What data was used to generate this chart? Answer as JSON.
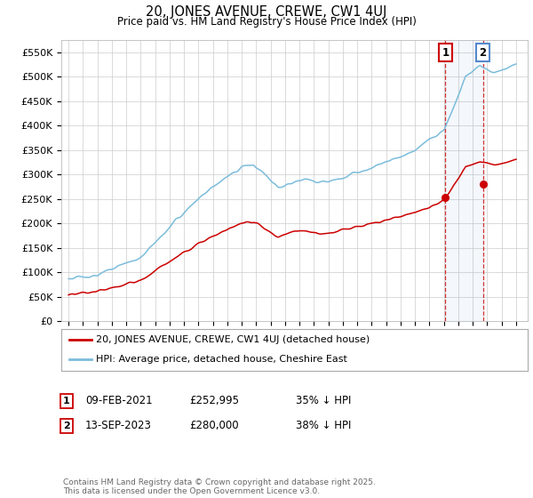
{
  "title": "20, JONES AVENUE, CREWE, CW1 4UJ",
  "subtitle": "Price paid vs. HM Land Registry's House Price Index (HPI)",
  "ylim": [
    0,
    575000
  ],
  "yticks": [
    0,
    50000,
    100000,
    150000,
    200000,
    250000,
    300000,
    350000,
    400000,
    450000,
    500000,
    550000
  ],
  "ytick_labels": [
    "£0",
    "£50K",
    "£100K",
    "£150K",
    "£200K",
    "£250K",
    "£300K",
    "£350K",
    "£400K",
    "£450K",
    "£500K",
    "£550K"
  ],
  "hpi_color": "#7bbcdc",
  "price_color": "#cc0000",
  "marker1_year": 2021.1,
  "marker1_price": 252995,
  "marker1_date": "09-FEB-2021",
  "marker1_pct": "£252,995",
  "marker1_label": "35% ↓ HPI",
  "marker2_year": 2023.7,
  "marker2_price": 280000,
  "marker2_date": "13-SEP-2023",
  "marker2_pct": "£280,000",
  "marker2_label": "38% ↓ HPI",
  "legend_house": "20, JONES AVENUE, CREWE, CW1 4UJ (detached house)",
  "legend_hpi": "HPI: Average price, detached house, Cheshire East",
  "footer": "Contains HM Land Registry data © Crown copyright and database right 2025.\nThis data is licensed under the Open Government Licence v3.0.",
  "background_color": "#ffffff",
  "grid_color": "#cccccc",
  "xlim_left": 1994.5,
  "xlim_right": 2026.8
}
